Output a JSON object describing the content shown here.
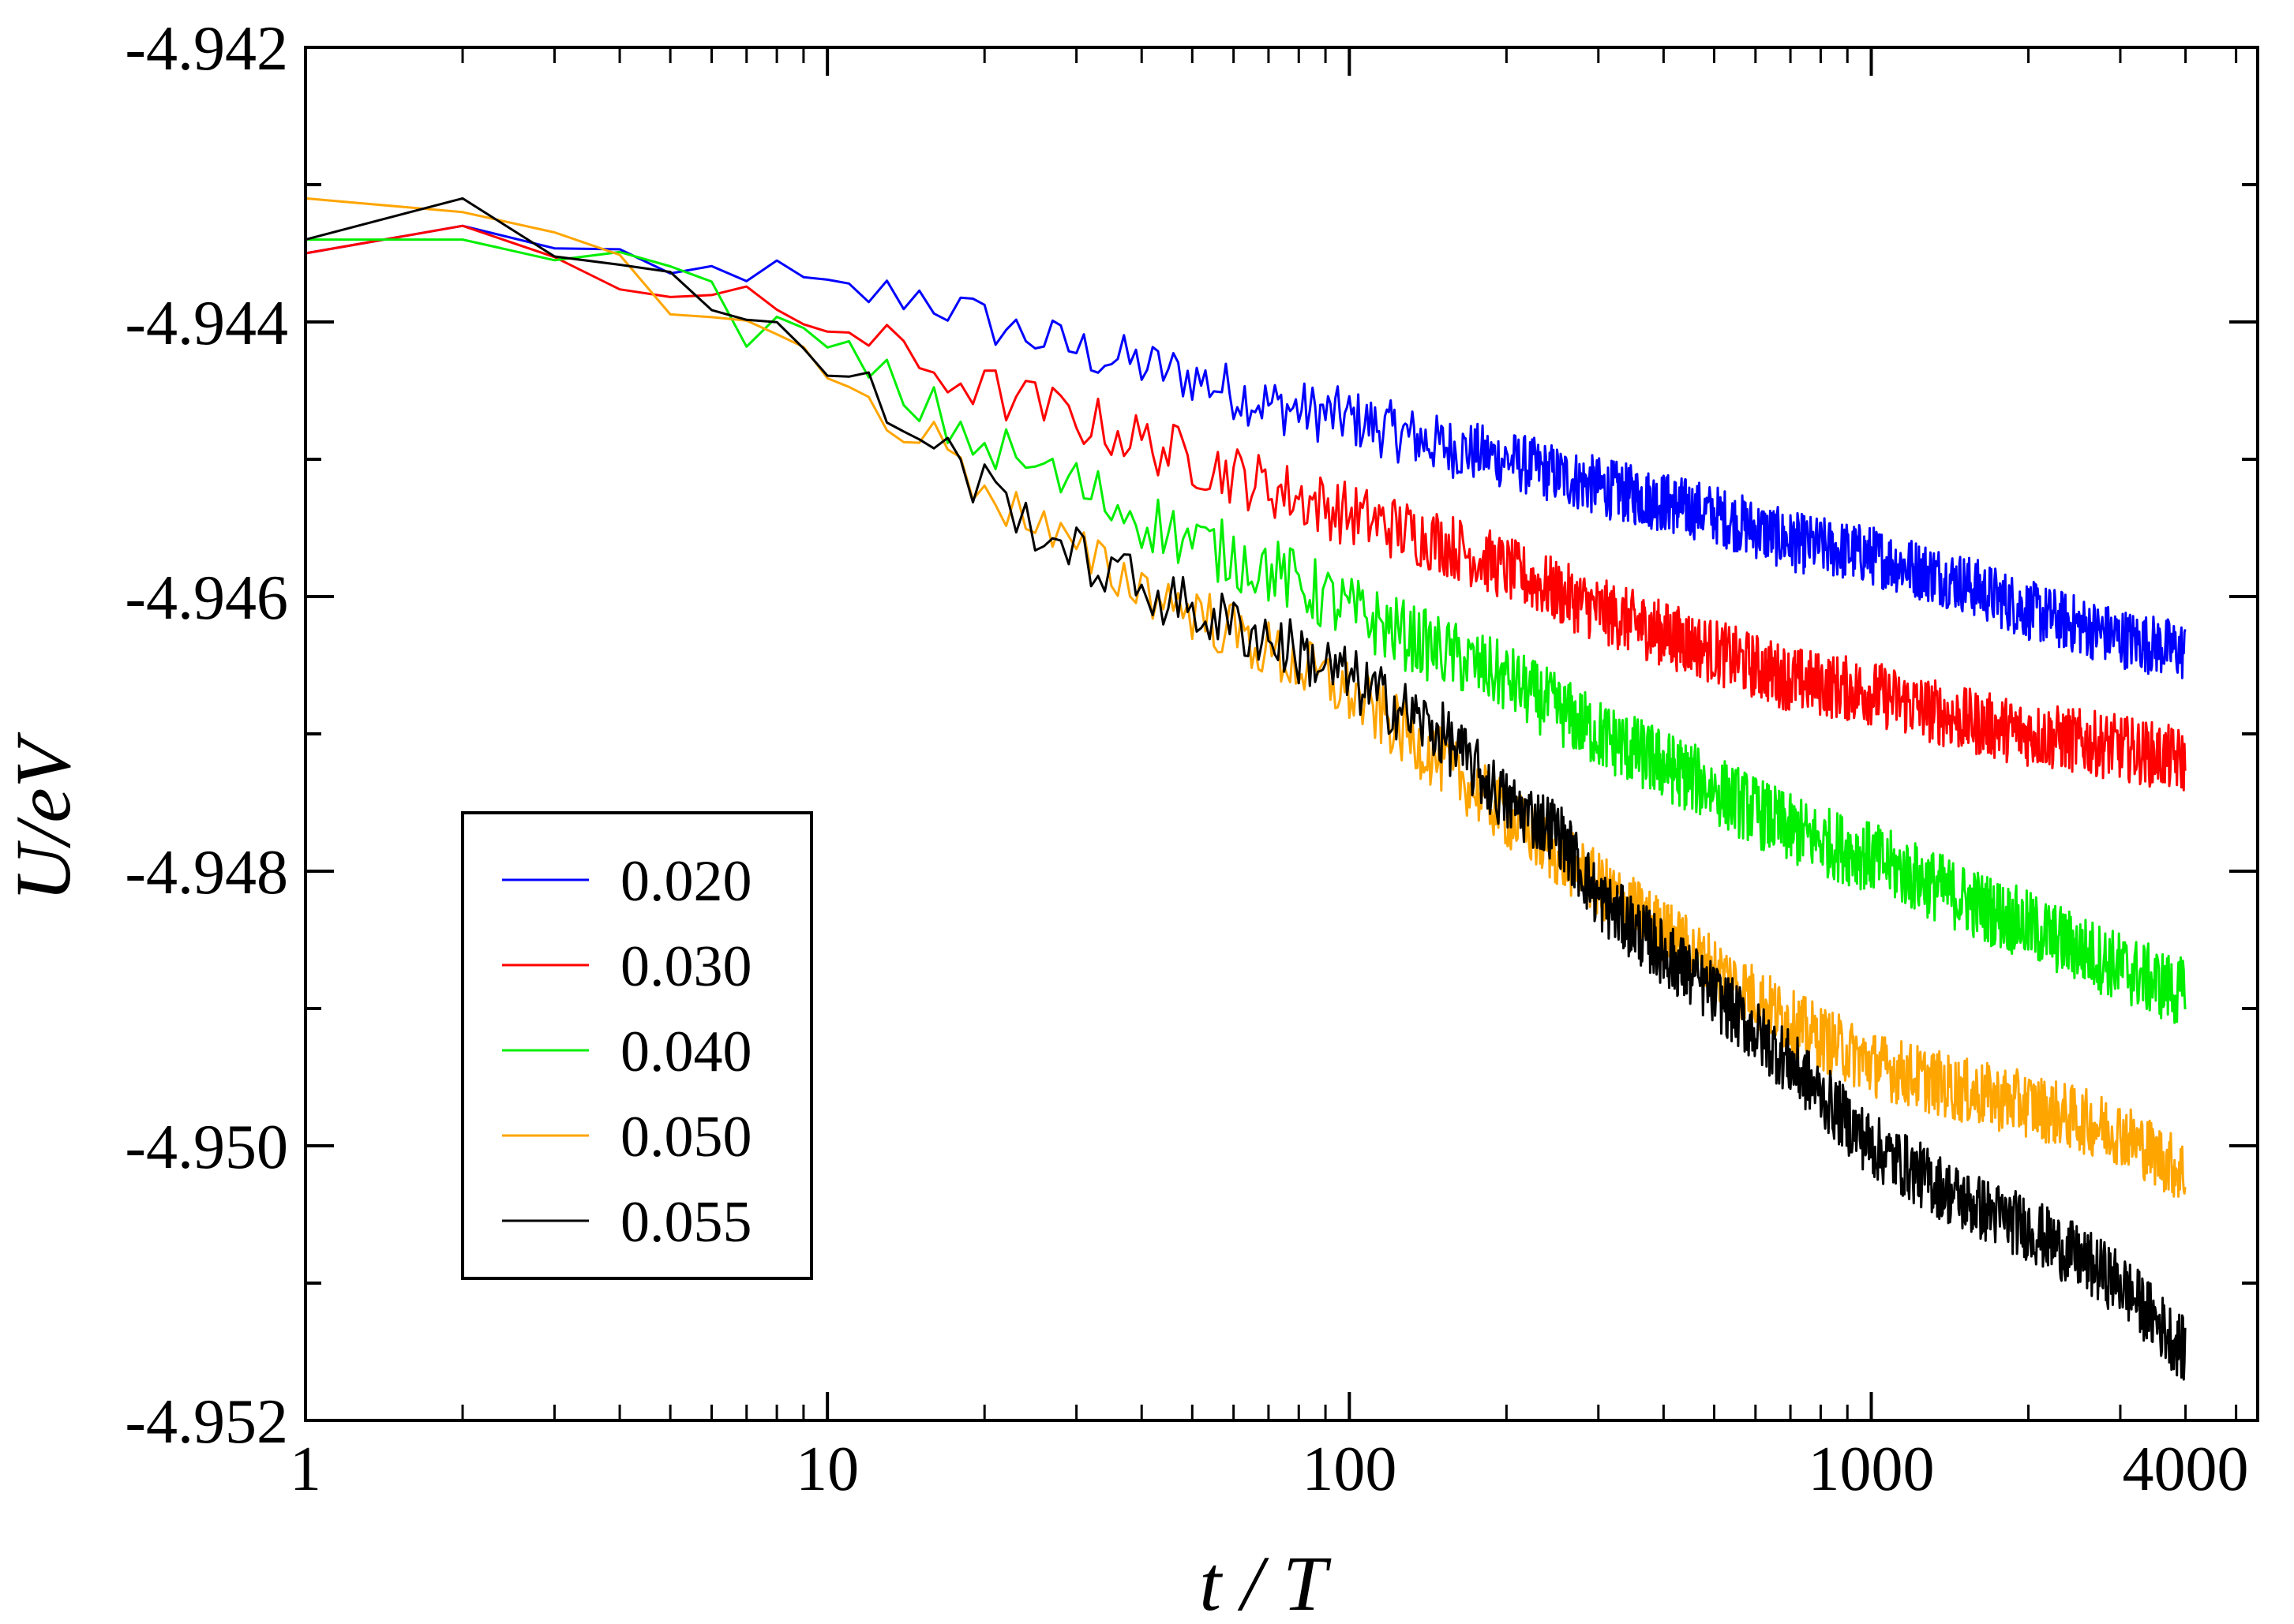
{
  "chart_data": {
    "type": "line",
    "xscale": "log",
    "xlabel": "t / T",
    "ylabel": "U/eV",
    "xlim": [
      1,
      5500
    ],
    "ylim": [
      -4.952,
      -4.942
    ],
    "xticks": [
      1,
      10,
      100,
      1000,
      4000
    ],
    "xtick_labels": [
      "1",
      "10",
      "100",
      "1000",
      "4000"
    ],
    "yticks": [
      -4.952,
      -4.95,
      -4.948,
      -4.946,
      -4.944,
      -4.942
    ],
    "ytick_labels": [
      "-4.952",
      "-4.950",
      "-4.948",
      "-4.946",
      "-4.944",
      "-4.942"
    ],
    "legend_position": "lower-left",
    "series": [
      {
        "name": "0.020",
        "color": "#0000ff",
        "x": [
          1,
          2,
          3,
          5,
          7,
          10,
          15,
          20,
          30,
          50,
          70,
          100,
          150,
          200,
          300,
          500,
          700,
          1000,
          1500,
          2000,
          3000,
          4000
        ],
        "y": [
          -4.9435,
          -4.9433,
          -4.9435,
          -4.9437,
          -4.9436,
          -4.9438,
          -4.9438,
          -4.944,
          -4.9442,
          -4.9444,
          -4.9446,
          -4.9447,
          -4.9449,
          -4.945,
          -4.9452,
          -4.9454,
          -4.9456,
          -4.9457,
          -4.9459,
          -4.9461,
          -4.9463,
          -4.9464
        ],
        "noise": 0.00022
      },
      {
        "name": "0.030",
        "color": "#ff0000",
        "x": [
          1,
          2,
          3,
          5,
          7,
          10,
          15,
          20,
          30,
          50,
          70,
          100,
          150,
          200,
          300,
          500,
          700,
          1000,
          1500,
          2000,
          3000,
          4000
        ],
        "y": [
          -4.9435,
          -4.9433,
          -4.9435,
          -4.9438,
          -4.9439,
          -4.944,
          -4.9443,
          -4.9445,
          -4.9447,
          -4.945,
          -4.9452,
          -4.9454,
          -4.9456,
          -4.9458,
          -4.9461,
          -4.9464,
          -4.9466,
          -4.9467,
          -4.9469,
          -4.947,
          -4.9471,
          -4.9472
        ],
        "noise": 0.00024
      },
      {
        "name": "0.040",
        "color": "#00ee00",
        "x": [
          1,
          2,
          3,
          5,
          7,
          10,
          15,
          20,
          30,
          50,
          70,
          100,
          150,
          200,
          300,
          500,
          700,
          1000,
          1500,
          2000,
          3000,
          4000
        ],
        "y": [
          -4.9434,
          -4.9434,
          -4.9434,
          -4.9437,
          -4.944,
          -4.9442,
          -4.9446,
          -4.9449,
          -4.9452,
          -4.9456,
          -4.9458,
          -4.9461,
          -4.9464,
          -4.9466,
          -4.947,
          -4.9474,
          -4.9477,
          -4.9479,
          -4.9482,
          -4.9484,
          -4.9487,
          -4.9489
        ],
        "noise": 0.00026
      },
      {
        "name": "0.050",
        "color": "#ffa500",
        "x": [
          1,
          2,
          3,
          5,
          7,
          10,
          15,
          20,
          30,
          50,
          70,
          100,
          150,
          200,
          300,
          500,
          700,
          1000,
          1500,
          2000,
          3000,
          4000
        ],
        "y": [
          -4.9431,
          -4.9432,
          -4.9434,
          -4.9438,
          -4.944,
          -4.9444,
          -4.9448,
          -4.9452,
          -4.9457,
          -4.9461,
          -4.9464,
          -4.9467,
          -4.9472,
          -4.9476,
          -4.9481,
          -4.9487,
          -4.9491,
          -4.9494,
          -4.9496,
          -4.9497,
          -4.9499,
          -4.9502
        ],
        "noise": 0.00024
      },
      {
        "name": "0.055",
        "color": "#000000",
        "x": [
          1,
          2,
          3,
          5,
          7,
          10,
          15,
          20,
          30,
          50,
          70,
          100,
          150,
          200,
          250,
          300,
          500,
          700,
          1000,
          1500,
          2000,
          3000,
          4000
        ],
        "y": [
          -4.9434,
          -4.9431,
          -4.9434,
          -4.9437,
          -4.944,
          -4.9443,
          -4.9448,
          -4.9452,
          -4.9457,
          -4.9461,
          -4.9463,
          -4.9466,
          -4.947,
          -4.9475,
          -4.9477,
          -4.9482,
          -4.9489,
          -4.9494,
          -4.95,
          -4.9504,
          -4.9506,
          -4.951,
          -4.9515
        ],
        "noise": 0.00024
      }
    ]
  }
}
